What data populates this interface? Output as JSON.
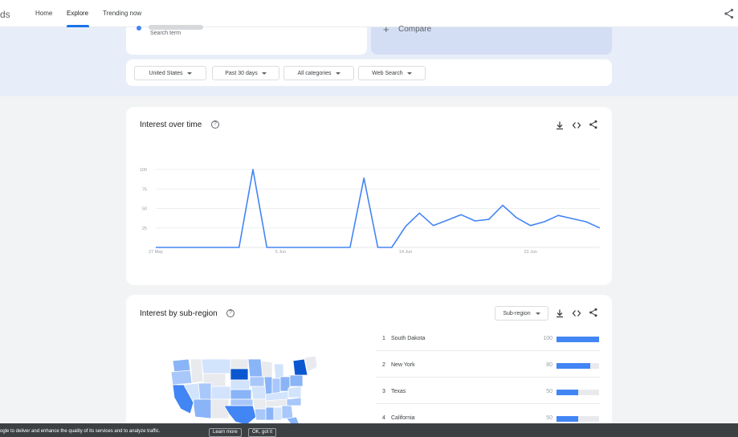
{
  "header": {
    "brand_fragment": "ds",
    "nav": [
      "Home",
      "Explore",
      "Trending now"
    ],
    "active_nav": "Explore",
    "share_icon": "share-icon"
  },
  "search": {
    "term_sub": "Search term",
    "compare_label": "Compare",
    "term_color": "#4285f4"
  },
  "filters": {
    "region": "United States",
    "time": "Past 30 days",
    "category": "All categories",
    "search_type": "Web Search"
  },
  "interest_over_time": {
    "title": "Interest over time",
    "tools": [
      "download-icon",
      "embed-icon",
      "share-icon"
    ]
  },
  "chart_data": {
    "type": "line",
    "ylim": [
      0,
      100
    ],
    "yticks": [
      25,
      50,
      75,
      100
    ],
    "xtick_labels": [
      "27 May",
      "5 Jun",
      "14 Jun",
      "23 Jun"
    ],
    "xtick_index": [
      0,
      9,
      18,
      27
    ],
    "grid": true,
    "line_color": "#4285f4",
    "series": [
      {
        "values": [
          0,
          0,
          0,
          0,
          0,
          0,
          0,
          100,
          0,
          0,
          0,
          0,
          0,
          0,
          0,
          89,
          0,
          0,
          27,
          44,
          28,
          35,
          42,
          34,
          36,
          54,
          38,
          28,
          33,
          41,
          37,
          33,
          25
        ]
      }
    ]
  },
  "interest_by_subregion": {
    "title": "Interest by sub-region",
    "select_label": "Sub-region",
    "tools": [
      "download-icon",
      "embed-icon",
      "share-icon"
    ],
    "rows": [
      {
        "rank": "1",
        "name": "South Dakota",
        "value": "100",
        "level": 100
      },
      {
        "rank": "2",
        "name": "New York",
        "value": "80",
        "level": 80
      },
      {
        "rank": "3",
        "name": "Texas",
        "value": "50",
        "level": 50
      },
      {
        "rank": "4",
        "name": "California",
        "value": "50",
        "level": 50
      }
    ]
  },
  "cookie_bar": {
    "text": "ogle to deliver and enhance the quality of its services and to analyze traffic.",
    "learn_more": "Learn more",
    "ok": "OK, got it"
  }
}
